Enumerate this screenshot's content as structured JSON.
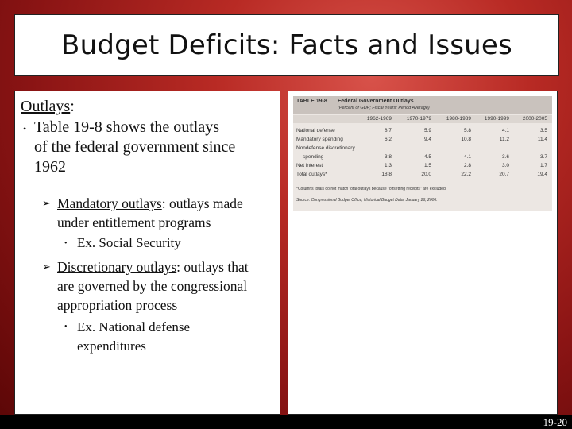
{
  "slide": {
    "title": "Budget Deficits: Facts and Issues",
    "page_number": "19-20"
  },
  "content": {
    "heading": "Outlays",
    "heading_colon": ":",
    "bullet1": [
      "Table 19-8 shows the outlays",
      "of the federal government since",
      "1962"
    ],
    "sub1_term": "Mandatory outlays",
    "sub1_rest": ": outlays made",
    "sub1_line2": "under entitlement programs",
    "sub1_example": "Ex. Social Security",
    "sub2_term": "Discretionary outlays",
    "sub2_rest": ": outlays that",
    "sub2_line2": "are governed by the congressional",
    "sub2_line3": "appropriation process",
    "sub2_example_l1": "Ex. National defense",
    "sub2_example_l2": "expenditures"
  },
  "table": {
    "label": "TABLE 19-8",
    "title": "Federal Government Outlays",
    "subtitle": "(Percent of GDP; Fiscal Years; Period Average)",
    "columns": [
      "1962-1969",
      "1970-1979",
      "1980-1989",
      "1990-1999",
      "2000-2005"
    ],
    "rows": [
      {
        "label": "National defense",
        "values": [
          "8.7",
          "5.9",
          "5.8",
          "4.1",
          "3.5"
        ]
      },
      {
        "label": "Mandatory spending",
        "values": [
          "6.2",
          "9.4",
          "10.8",
          "11.2",
          "11.4"
        ]
      },
      {
        "label": "Nondefense discretionary",
        "values": [
          "",
          "",
          "",
          "",
          ""
        ]
      },
      {
        "label": "spending",
        "values": [
          "3.8",
          "4.5",
          "4.1",
          "3.6",
          "3.7"
        ]
      },
      {
        "label": "Net interest",
        "values": [
          "1.3",
          "1.5",
          "2.8",
          "3.0",
          "1.7"
        ]
      },
      {
        "label": "Total outlays*",
        "values": [
          "18.8",
          "20.0",
          "22.2",
          "20.7",
          "19.4"
        ]
      }
    ],
    "footnote": "*Columns totals do not match total outlays because \"offsetting receipts\" are excluded.",
    "source": "Source: Congressional Budget Office, Historical Budget Data, January 26, 2006."
  }
}
